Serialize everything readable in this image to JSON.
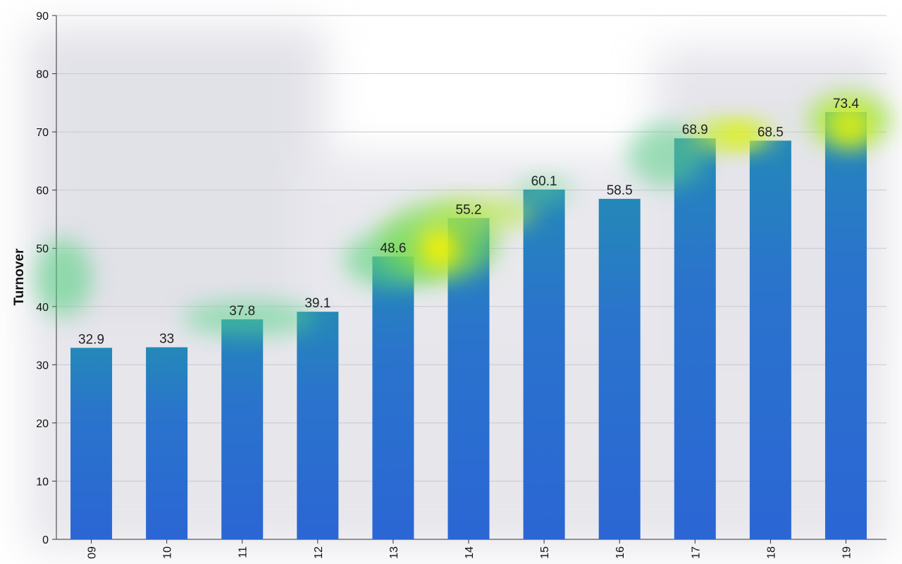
{
  "chart_data": {
    "type": "bar",
    "categories": [
      "09",
      "10",
      "11",
      "12",
      "13",
      "14",
      "15",
      "16",
      "17",
      "18",
      "19"
    ],
    "values": [
      32.9,
      33,
      37.8,
      39.1,
      48.6,
      55.2,
      60.1,
      58.5,
      68.9,
      68.5,
      73.4
    ],
    "value_labels": [
      "32.9",
      "33",
      "37.8",
      "39.1",
      "48.6",
      "55.2",
      "60.1",
      "58.5",
      "68.9",
      "68.5",
      "73.4"
    ],
    "title": "",
    "xlabel": "",
    "ylabel": "Turnover",
    "ylim": [
      0,
      90
    ],
    "yticks": [
      0,
      10,
      20,
      30,
      40,
      50,
      60,
      70,
      80,
      90
    ],
    "ytick_labels": [
      "0",
      "10",
      "20",
      "30",
      "40",
      "50",
      "60",
      "70",
      "80",
      "90"
    ],
    "grid": true,
    "legend": "none",
    "bar_color": "#2a6bd1",
    "grid_color": "#c8c8d0",
    "overlay": "heatmap"
  }
}
